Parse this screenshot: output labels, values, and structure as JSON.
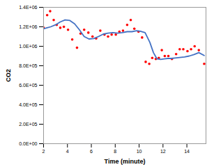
{
  "chart_data": {
    "type": "line",
    "xlabel": "Time (minute)",
    "ylabel": "CO2",
    "xlim": [
      2,
      15.6
    ],
    "ylim": [
      0,
      1400000
    ],
    "xticks": [
      2,
      4,
      6,
      8,
      10,
      12,
      14
    ],
    "yticks": [
      {
        "value": 0,
        "label": "0.0E+00"
      },
      {
        "value": 200000,
        "label": "2.0E+05"
      },
      {
        "value": 400000,
        "label": "4.0E+05"
      },
      {
        "value": 600000,
        "label": "6.0E+05"
      },
      {
        "value": 800000,
        "label": "8.0E+05"
      },
      {
        "value": 1000000,
        "label": "1.0E+06"
      },
      {
        "value": 1200000,
        "label": "1.2E+06"
      },
      {
        "value": 1400000,
        "label": "1.4E+06"
      }
    ],
    "grid": false,
    "series": [
      {
        "type": "scatter",
        "color": "#FF0000",
        "x": [
          2.0,
          2.3,
          2.55,
          2.85,
          3.1,
          3.4,
          3.7,
          4.05,
          4.4,
          4.8,
          5.1,
          5.4,
          5.75,
          6.1,
          6.4,
          6.75,
          7.1,
          7.4,
          7.7,
          8.05,
          8.35,
          8.65,
          9.0,
          9.3,
          9.6,
          9.95,
          10.25,
          10.55,
          10.85,
          11.1,
          11.4,
          11.65,
          11.9,
          12.15,
          12.45,
          12.75,
          13.1,
          13.4,
          13.7,
          14.05,
          14.35,
          14.65,
          15.0,
          15.45
        ],
        "values": [
          1190000,
          1320000,
          1360000,
          1270000,
          1220000,
          1190000,
          1200000,
          1170000,
          1070000,
          985000,
          1130000,
          1170000,
          1140000,
          1100000,
          1080000,
          1160000,
          1120000,
          1100000,
          1120000,
          1120000,
          1150000,
          1160000,
          1220000,
          1270000,
          1180000,
          1150000,
          1090000,
          840000,
          820000,
          880000,
          870000,
          880000,
          960000,
          900000,
          900000,
          870000,
          920000,
          970000,
          970000,
          950000,
          970000,
          1000000,
          960000,
          820000
        ]
      },
      {
        "type": "line",
        "color": "#4472C4",
        "x": [
          2.0,
          2.3,
          2.6,
          3.0,
          3.4,
          3.8,
          4.2,
          4.6,
          5.0,
          5.4,
          5.8,
          6.2,
          6.6,
          7.0,
          7.4,
          7.8,
          8.2,
          8.6,
          9.0,
          9.4,
          9.8,
          10.1,
          10.5,
          10.9,
          11.2,
          11.5,
          11.8,
          12.1,
          12.4,
          12.7,
          13.0,
          13.4,
          13.8,
          14.2,
          14.6,
          15.0,
          15.45
        ],
        "values": [
          1180000,
          1190000,
          1200000,
          1220000,
          1250000,
          1270000,
          1265000,
          1230000,
          1170000,
          1100000,
          1075000,
          1080000,
          1100000,
          1125000,
          1135000,
          1140000,
          1135000,
          1140000,
          1150000,
          1150000,
          1160000,
          1155000,
          1140000,
          1040000,
          935000,
          870000,
          865000,
          870000,
          875000,
          875000,
          880000,
          885000,
          890000,
          900000,
          915000,
          935000,
          905000
        ]
      }
    ]
  }
}
